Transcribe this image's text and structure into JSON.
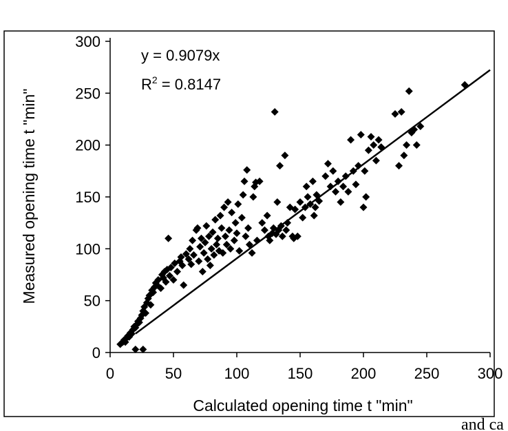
{
  "chart_data": {
    "type": "scatter",
    "title": "",
    "xlabel": "Calculated  opening time t \"min\"",
    "ylabel": "Measured opening time t \"min\"",
    "xlim": [
      0,
      300
    ],
    "ylim": [
      0,
      300
    ],
    "x_ticks": [
      "0",
      "50",
      "100",
      "150",
      "200",
      "250",
      "300"
    ],
    "y_ticks": [
      "0",
      "50",
      "100",
      "150",
      "200",
      "250",
      "300"
    ],
    "grid": false,
    "legend": "none",
    "trendline": {
      "slope": 0.9079,
      "x_range": [
        20,
        300
      ]
    },
    "annotations": {
      "equation": "y = 0.9079x",
      "r2_prefix": "R",
      "r2_exp": "2",
      "r2_value": " = 0.8147"
    },
    "marker": "diamond",
    "marker_color": "#000000",
    "points": [
      [
        8,
        8
      ],
      [
        10,
        10
      ],
      [
        11,
        12
      ],
      [
        12,
        10
      ],
      [
        13,
        14
      ],
      [
        14,
        16
      ],
      [
        15,
        15
      ],
      [
        16,
        19
      ],
      [
        17,
        18
      ],
      [
        18,
        22
      ],
      [
        19,
        25
      ],
      [
        20,
        24
      ],
      [
        20,
        3
      ],
      [
        21,
        27
      ],
      [
        22,
        30
      ],
      [
        23,
        29
      ],
      [
        24,
        33
      ],
      [
        25,
        36
      ],
      [
        26,
        3
      ],
      [
        26,
        40
      ],
      [
        27,
        44
      ],
      [
        28,
        38
      ],
      [
        29,
        48
      ],
      [
        30,
        52
      ],
      [
        31,
        55
      ],
      [
        32,
        46
      ],
      [
        33,
        60
      ],
      [
        34,
        58
      ],
      [
        35,
        63
      ],
      [
        36,
        67
      ],
      [
        37,
        65
      ],
      [
        38,
        70
      ],
      [
        40,
        62
      ],
      [
        41,
        75
      ],
      [
        42,
        72
      ],
      [
        43,
        78
      ],
      [
        44,
        68
      ],
      [
        45,
        80
      ],
      [
        46,
        110
      ],
      [
        47,
        74
      ],
      [
        48,
        82
      ],
      [
        50,
        70
      ],
      [
        51,
        86
      ],
      [
        53,
        78
      ],
      [
        55,
        88
      ],
      [
        56,
        92
      ],
      [
        57,
        84
      ],
      [
        58,
        65
      ],
      [
        60,
        95
      ],
      [
        62,
        90
      ],
      [
        63,
        100
      ],
      [
        64,
        85
      ],
      [
        65,
        108
      ],
      [
        66,
        94
      ],
      [
        68,
        118
      ],
      [
        69,
        120
      ],
      [
        70,
        88
      ],
      [
        71,
        102
      ],
      [
        72,
        110
      ],
      [
        73,
        78
      ],
      [
        74,
        96
      ],
      [
        75,
        106
      ],
      [
        76,
        122
      ],
      [
        77,
        90
      ],
      [
        78,
        112
      ],
      [
        79,
        84
      ],
      [
        80,
        100
      ],
      [
        81,
        116
      ],
      [
        82,
        94
      ],
      [
        83,
        128
      ],
      [
        84,
        104
      ],
      [
        85,
        110
      ],
      [
        86,
        98
      ],
      [
        87,
        132
      ],
      [
        88,
        120
      ],
      [
        89,
        96
      ],
      [
        90,
        140
      ],
      [
        91,
        112
      ],
      [
        92,
        104
      ],
      [
        93,
        145
      ],
      [
        94,
        118
      ],
      [
        95,
        100
      ],
      [
        96,
        135
      ],
      [
        98,
        108
      ],
      [
        99,
        125
      ],
      [
        100,
        115
      ],
      [
        101,
        143
      ],
      [
        102,
        98
      ],
      [
        104,
        130
      ],
      [
        105,
        152
      ],
      [
        106,
        165
      ],
      [
        107,
        112
      ],
      [
        108,
        176
      ],
      [
        109,
        120
      ],
      [
        110,
        104
      ],
      [
        112,
        96
      ],
      [
        113,
        150
      ],
      [
        114,
        160
      ],
      [
        115,
        164
      ],
      [
        116,
        108
      ],
      [
        118,
        165
      ],
      [
        120,
        125
      ],
      [
        122,
        118
      ],
      [
        124,
        132
      ],
      [
        125,
        112
      ],
      [
        126,
        108
      ],
      [
        128,
        115
      ],
      [
        129,
        120
      ],
      [
        130,
        232
      ],
      [
        131,
        114
      ],
      [
        132,
        145
      ],
      [
        133,
        118
      ],
      [
        134,
        180
      ],
      [
        135,
        122
      ],
      [
        136,
        112
      ],
      [
        138,
        190
      ],
      [
        139,
        118
      ],
      [
        140,
        125
      ],
      [
        142,
        140
      ],
      [
        144,
        112
      ],
      [
        145,
        110
      ],
      [
        146,
        138
      ],
      [
        148,
        112
      ],
      [
        150,
        145
      ],
      [
        152,
        130
      ],
      [
        154,
        140
      ],
      [
        155,
        160
      ],
      [
        156,
        150
      ],
      [
        158,
        143
      ],
      [
        160,
        165
      ],
      [
        161,
        132
      ],
      [
        162,
        140
      ],
      [
        163,
        152
      ],
      [
        165,
        146
      ],
      [
        170,
        170
      ],
      [
        172,
        182
      ],
      [
        174,
        160
      ],
      [
        176,
        175
      ],
      [
        178,
        155
      ],
      [
        180,
        165
      ],
      [
        182,
        145
      ],
      [
        184,
        160
      ],
      [
        186,
        170
      ],
      [
        188,
        155
      ],
      [
        190,
        205
      ],
      [
        192,
        175
      ],
      [
        194,
        162
      ],
      [
        196,
        180
      ],
      [
        198,
        210
      ],
      [
        200,
        140
      ],
      [
        201,
        175
      ],
      [
        202,
        150
      ],
      [
        204,
        195
      ],
      [
        206,
        208
      ],
      [
        208,
        200
      ],
      [
        210,
        185
      ],
      [
        212,
        205
      ],
      [
        214,
        198
      ],
      [
        225,
        230
      ],
      [
        228,
        180
      ],
      [
        230,
        232
      ],
      [
        232,
        190
      ],
      [
        234,
        200
      ],
      [
        236,
        252
      ],
      [
        238,
        212
      ],
      [
        240,
        215
      ],
      [
        242,
        200
      ],
      [
        245,
        218
      ],
      [
        280,
        258
      ]
    ]
  },
  "caption": "and ca"
}
